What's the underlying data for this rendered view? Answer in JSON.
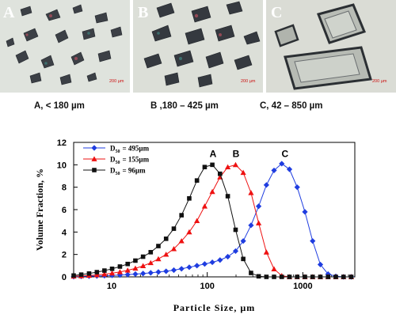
{
  "micrographs": [
    {
      "letter": "A",
      "scale": "200 µm"
    },
    {
      "letter": "B",
      "scale": "200 µm"
    },
    {
      "letter": "C",
      "scale": "200 µm"
    }
  ],
  "captions": [
    "A, < 180 µm",
    "B ,180 – 425 µm",
    "C, 42 – 850 µm"
  ],
  "chart_data": {
    "type": "line",
    "xlabel": "Particle Size, µm",
    "ylabel": "Volume Fraction, %",
    "x_scale": "log",
    "xlim": [
      4,
      3500
    ],
    "ylim": [
      0,
      12
    ],
    "xticks": [
      10,
      100,
      1000
    ],
    "yticks": [
      0,
      2,
      4,
      6,
      8,
      10,
      12
    ],
    "grid": false,
    "legend_position": "top-left",
    "peak_labels": [
      {
        "text": "A",
        "x": 115,
        "y": 10.7
      },
      {
        "text": "B",
        "x": 200,
        "y": 10.7
      },
      {
        "text": "C",
        "x": 650,
        "y": 10.7
      }
    ],
    "series": [
      {
        "name": "D50 = 495µm",
        "legend_text": "= 495µm",
        "color": "#1f3de0",
        "marker": "diamond",
        "x": [
          4.0,
          4.8,
          5.8,
          7.0,
          8.4,
          10.1,
          12.2,
          14.7,
          17.7,
          21.3,
          25.6,
          30.8,
          37.1,
          44.7,
          53.8,
          64.8,
          78.0,
          94.0,
          113,
          136,
          164,
          198,
          238,
          287,
          345,
          416,
          500,
          602,
          725,
          873,
          1052,
          1267,
          1526,
          1838,
          2214,
          2667,
          3212
        ],
        "y": [
          0.02,
          0.04,
          0.06,
          0.08,
          0.1,
          0.13,
          0.16,
          0.2,
          0.25,
          0.3,
          0.36,
          0.43,
          0.5,
          0.6,
          0.72,
          0.86,
          1.0,
          1.15,
          1.3,
          1.5,
          1.8,
          2.3,
          3.2,
          4.6,
          6.3,
          8.2,
          9.5,
          10.1,
          9.6,
          8.0,
          5.8,
          3.2,
          1.1,
          0.25,
          0.05,
          0.0,
          0.0
        ]
      },
      {
        "name": "D50 = 155µm",
        "legend_text": "= 155µm",
        "color": "#ee1111",
        "marker": "triangle",
        "x": [
          4.0,
          4.8,
          5.8,
          7.0,
          8.4,
          10.1,
          12.2,
          14.7,
          17.7,
          21.3,
          25.6,
          30.8,
          37.1,
          44.7,
          53.8,
          64.8,
          78.0,
          94.0,
          113,
          136,
          164,
          198,
          238,
          287,
          345,
          416,
          500,
          602,
          725,
          873,
          1052,
          1267,
          1526,
          1838,
          2214,
          2667,
          3212
        ],
        "y": [
          0.05,
          0.08,
          0.12,
          0.17,
          0.24,
          0.33,
          0.44,
          0.58,
          0.76,
          0.98,
          1.25,
          1.6,
          2.0,
          2.5,
          3.2,
          4.0,
          5.0,
          6.3,
          7.6,
          8.9,
          9.8,
          10.0,
          9.3,
          7.5,
          4.8,
          2.2,
          0.7,
          0.1,
          0.0,
          0.0,
          0.0,
          0.0,
          0.0,
          0.0,
          0.0,
          0.0,
          0.0
        ]
      },
      {
        "name": "D50 = 96µm",
        "legend_text": "= 96µm",
        "color": "#111111",
        "marker": "square",
        "x": [
          4.0,
          4.8,
          5.8,
          7.0,
          8.4,
          10.1,
          12.2,
          14.7,
          17.7,
          21.3,
          25.6,
          30.8,
          37.1,
          44.7,
          53.8,
          64.8,
          78.0,
          94.0,
          113,
          136,
          164,
          198,
          238,
          287,
          345,
          416,
          500,
          602,
          725,
          873,
          1052,
          1267,
          1526,
          1838,
          2214,
          2667,
          3212
        ],
        "y": [
          0.12,
          0.2,
          0.3,
          0.42,
          0.56,
          0.72,
          0.92,
          1.15,
          1.45,
          1.8,
          2.2,
          2.75,
          3.4,
          4.3,
          5.5,
          7.0,
          8.6,
          9.8,
          10.0,
          9.2,
          7.2,
          4.2,
          1.6,
          0.35,
          0.05,
          0.0,
          0.0,
          0.0,
          0.0,
          0.0,
          0.0,
          0.0,
          0.0,
          0.0,
          0.0,
          0.0,
          0.0
        ]
      }
    ]
  }
}
